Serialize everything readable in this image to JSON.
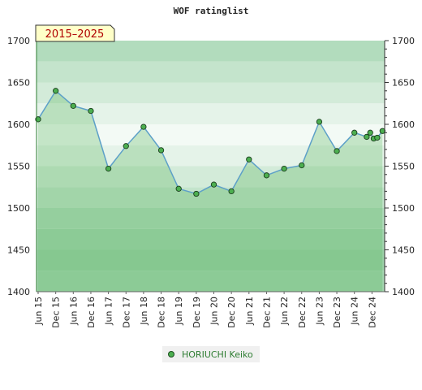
{
  "chart_data": {
    "type": "line",
    "title": "WOF ratinglist",
    "period_badge": "2015–2025",
    "ylim": [
      1400,
      1700
    ],
    "yticks": [
      1400,
      1450,
      1500,
      1550,
      1600,
      1650,
      1700
    ],
    "ytick_labels": [
      "1400",
      "1450",
      "1500",
      "1550",
      "1600",
      "1650",
      "1700"
    ],
    "xlim": [
      0,
      19.6
    ],
    "xticks": [
      0,
      1,
      2,
      3,
      4,
      5,
      6,
      7,
      8,
      9,
      10,
      11,
      12,
      13,
      14,
      15,
      16,
      17,
      18,
      19
    ],
    "xtick_labels": [
      "Jun 15",
      "Dec 15",
      "Jun 16",
      "Dec 16",
      "Jun 17",
      "Dec 17",
      "Jun 18",
      "Dec 18",
      "Jun 19",
      "Dec 19",
      "Jun 20",
      "Dec 20",
      "Jun 21",
      "Dec 21",
      "Jun 22",
      "Dec 22",
      "Jun 23",
      "Dec 23",
      "Jun 24",
      "Dec 24"
    ],
    "grid": false,
    "legend": "bottom-center",
    "series": [
      {
        "name": "HORIUCHI Keiko",
        "color": "#5da0c8",
        "marker_color": "#4caf50",
        "x": [
          0,
          1,
          2,
          3,
          4,
          5,
          6,
          7,
          8,
          9,
          10,
          11,
          12,
          13,
          14,
          15,
          16,
          17,
          18,
          18.7,
          18.9,
          19.1,
          19.3,
          19.6
        ],
        "y": [
          1606,
          1640,
          1622,
          1616,
          1547,
          1574,
          1597,
          1569,
          1523,
          1517,
          1528,
          1520,
          1558,
          1539,
          1547,
          1551,
          1603,
          1568,
          1590,
          1585,
          1590,
          1583,
          1584,
          1592
        ]
      }
    ]
  }
}
